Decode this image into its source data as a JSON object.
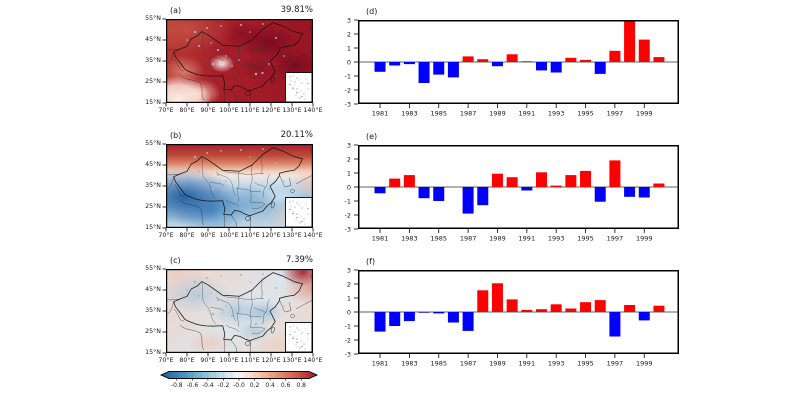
{
  "panels": {
    "maps": [
      {
        "label": "(a)",
        "variance": "39.81%"
      },
      {
        "label": "(b)",
        "variance": "20.11%"
      },
      {
        "label": "(c)",
        "variance": "7.39%"
      }
    ],
    "map_x_ticks": [
      "70°E",
      "80°E",
      "90°E",
      "100°E",
      "110°E",
      "120°E",
      "130°E",
      "140°E"
    ],
    "map_y_ticks": [
      "55°N",
      "45°N",
      "35°N",
      "25°N",
      "15°N"
    ]
  },
  "colorbar": {
    "tick_labels": [
      "-0.8",
      "-0.6",
      "-0.4",
      "-0.2",
      "-0.0",
      "0.2",
      "0.4",
      "0.6",
      "0.8"
    ],
    "colors": [
      "#2166ac",
      "#4393c3",
      "#92c5de",
      "#d1e5f0",
      "#f7f7f7",
      "#fddbc7",
      "#f4a582",
      "#d6604d",
      "#b2182b"
    ]
  },
  "chart_data": [
    {
      "type": "bar",
      "panel_label": "(d)",
      "x": [
        1981,
        1982,
        1983,
        1984,
        1985,
        1986,
        1987,
        1988,
        1989,
        1990,
        1991,
        1992,
        1993,
        1994,
        1995,
        1996,
        1997,
        1998,
        1999,
        2000
      ],
      "values": [
        -0.7,
        -0.25,
        -0.15,
        -1.5,
        -0.9,
        -1.1,
        0.4,
        0.2,
        -0.3,
        0.55,
        0.05,
        -0.6,
        -0.75,
        0.3,
        0.15,
        -0.85,
        0.8,
        2.9,
        1.6,
        0.35
      ],
      "x_tick_labels": [
        "1981",
        "1983",
        "1985",
        "1987",
        "1989",
        "1991",
        "1993",
        "1995",
        "1997",
        "1999"
      ],
      "y_ticks": [
        3,
        2,
        1,
        0,
        -1,
        -2,
        -3
      ],
      "ylim": [
        -3,
        3
      ],
      "xlim": [
        1979.5,
        2001.4
      ],
      "grid": false,
      "legend": false,
      "bar_positive_color": "#ff0000",
      "bar_negative_color": "#0000ff",
      "zero_line_color": "#808080"
    },
    {
      "type": "bar",
      "panel_label": "(e)",
      "x": [
        1981,
        1982,
        1983,
        1984,
        1985,
        1986,
        1987,
        1988,
        1989,
        1990,
        1991,
        1992,
        1993,
        1994,
        1995,
        1996,
        1997,
        1998,
        1999,
        2000
      ],
      "values": [
        -0.45,
        0.6,
        0.85,
        -0.8,
        -1.0,
        0.0,
        -1.9,
        -1.3,
        0.95,
        0.7,
        -0.25,
        1.05,
        0.1,
        0.85,
        1.15,
        -1.05,
        1.9,
        -0.7,
        -0.75,
        0.25
      ],
      "x_tick_labels": [
        "1981",
        "1983",
        "1985",
        "1987",
        "1989",
        "1991",
        "1993",
        "1995",
        "1997",
        "1999"
      ],
      "y_ticks": [
        3,
        2,
        1,
        0,
        -1,
        -2,
        -3
      ],
      "ylim": [
        -3,
        3
      ],
      "xlim": [
        1979.5,
        2001.4
      ],
      "grid": false,
      "legend": false,
      "bar_positive_color": "#ff0000",
      "bar_negative_color": "#0000ff",
      "zero_line_color": "#808080"
    },
    {
      "type": "bar",
      "panel_label": "(f)",
      "x": [
        1981,
        1982,
        1983,
        1984,
        1985,
        1986,
        1987,
        1988,
        1989,
        1990,
        1991,
        1992,
        1993,
        1994,
        1995,
        1996,
        1997,
        1998,
        1999,
        2000
      ],
      "values": [
        -1.4,
        -1.0,
        -0.65,
        -0.05,
        -0.1,
        -0.75,
        -1.35,
        1.55,
        2.05,
        0.9,
        0.15,
        0.2,
        0.55,
        0.25,
        0.7,
        0.85,
        -1.75,
        0.5,
        -0.6,
        0.45
      ],
      "x_tick_labels": [
        "1981",
        "1983",
        "1985",
        "1987",
        "1989",
        "1991",
        "1993",
        "1995",
        "1997",
        "1999"
      ],
      "y_ticks": [
        3,
        2,
        1,
        0,
        -1,
        -2,
        -3
      ],
      "ylim": [
        -3,
        3
      ],
      "xlim": [
        1979.5,
        2001.4
      ],
      "grid": false,
      "legend": false,
      "bar_positive_color": "#ff0000",
      "bar_negative_color": "#0000ff",
      "zero_line_color": "#808080"
    }
  ]
}
